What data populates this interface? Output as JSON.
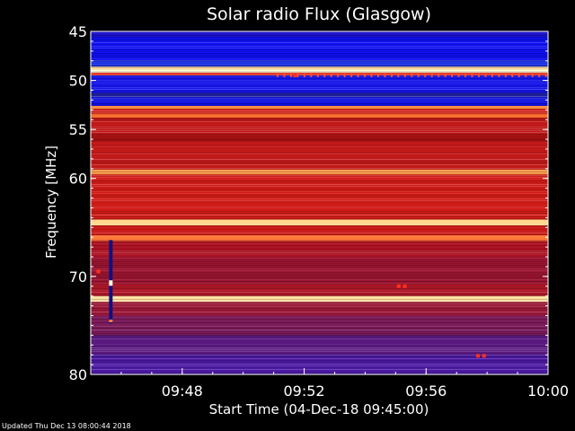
{
  "chart_data": {
    "type": "heatmap",
    "title": "Solar radio Flux (Glasgow)",
    "xlabel": "Start Time (04-Dec-18 09:45:00)",
    "ylabel_left": "Frequency [",
    "ylabel_mid": "MHz",
    "ylabel_right": "]",
    "footer": "Updated Thu Dec 13 08:00:44 2018",
    "x_range_minutes": [
      0,
      15
    ],
    "y_range_mhz": [
      45,
      80
    ],
    "y_ticks": [
      {
        "value": 45,
        "label": "45"
      },
      {
        "value": 50,
        "label": "50"
      },
      {
        "value": 55,
        "label": "55"
      },
      {
        "value": 60,
        "label": "60"
      },
      {
        "value": 70,
        "label": "70"
      },
      {
        "value": 80,
        "label": "80"
      }
    ],
    "x_ticks": [
      {
        "value": 3,
        "label": "09:48"
      },
      {
        "value": 7,
        "label": "09:52"
      },
      {
        "value": 11,
        "label": "09:56"
      },
      {
        "value": 15,
        "label": "10:00"
      }
    ],
    "bands": [
      {
        "from": 45.0,
        "to": 45.6,
        "color": "#1a10c8"
      },
      {
        "from": 45.6,
        "to": 48.0,
        "color": "#1010f0"
      },
      {
        "from": 48.0,
        "to": 48.6,
        "color": "#1a30e0"
      },
      {
        "from": 48.6,
        "to": 48.9,
        "color": "#ffe0a0"
      },
      {
        "from": 48.9,
        "to": 49.2,
        "color": "#ffffd8"
      },
      {
        "from": 49.2,
        "to": 49.5,
        "color": "#e03020"
      },
      {
        "from": 49.5,
        "to": 51.3,
        "color": "#1414e8"
      },
      {
        "from": 51.3,
        "to": 51.7,
        "color": "#2020a0"
      },
      {
        "from": 51.7,
        "to": 52.6,
        "color": "#1010e0"
      },
      {
        "from": 52.6,
        "to": 52.9,
        "color": "#ff9040"
      },
      {
        "from": 52.9,
        "to": 53.4,
        "color": "#d02018"
      },
      {
        "from": 53.4,
        "to": 53.8,
        "color": "#ff7030"
      },
      {
        "from": 53.8,
        "to": 55.5,
        "color": "#c01818"
      },
      {
        "from": 55.5,
        "to": 56.2,
        "color": "#a01010"
      },
      {
        "from": 56.2,
        "to": 59.1,
        "color": "#c41a1a"
      },
      {
        "from": 59.1,
        "to": 59.6,
        "color": "#ffa050"
      },
      {
        "from": 59.6,
        "to": 64.2,
        "color": "#d01c18"
      },
      {
        "from": 64.2,
        "to": 64.8,
        "color": "#ffd890"
      },
      {
        "from": 64.8,
        "to": 65.8,
        "color": "#c81818"
      },
      {
        "from": 65.8,
        "to": 66.4,
        "color": "#ff7838"
      },
      {
        "from": 66.4,
        "to": 68.0,
        "color": "#a81020"
      },
      {
        "from": 68.0,
        "to": 70.8,
        "color": "#9a1430"
      },
      {
        "from": 70.8,
        "to": 72.0,
        "color": "#b01828"
      },
      {
        "from": 72.0,
        "to": 72.6,
        "color": "#ffe0a0"
      },
      {
        "from": 72.6,
        "to": 74.0,
        "color": "#9a1838"
      },
      {
        "from": 74.0,
        "to": 76.0,
        "color": "#7a1a58"
      },
      {
        "from": 76.0,
        "to": 78.0,
        "color": "#5a1a80"
      },
      {
        "from": 78.0,
        "to": 80.0,
        "color": "#4a18a0"
      }
    ],
    "marks": [
      {
        "t": 0.25,
        "f": 69.5,
        "color": "#ff3020"
      },
      {
        "t": 6.7,
        "f": 49.5,
        "color": "#ff3020"
      },
      {
        "t": 10.1,
        "f": 71.0,
        "color": "#ff3020"
      },
      {
        "t": 10.3,
        "f": 71.0,
        "color": "#ff3020"
      },
      {
        "t": 12.7,
        "f": 78.1,
        "color": "#ff3020"
      },
      {
        "t": 12.9,
        "f": 78.1,
        "color": "#ff3020"
      }
    ],
    "grid": false
  }
}
